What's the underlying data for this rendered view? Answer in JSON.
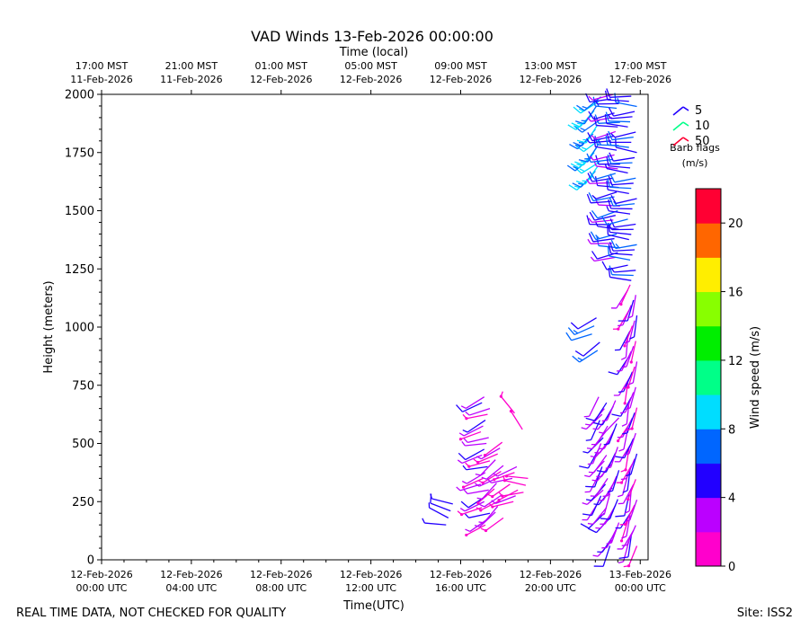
{
  "chart_data": {
    "type": "scatter",
    "title": "VAD Winds 13-Feb-2026 00:00:00",
    "top_axis_label": "Time (local)",
    "xlabel": "Time(UTC)",
    "ylabel": "Height (meters)",
    "xlim_hours": [
      0,
      24.35
    ],
    "ylim": [
      0,
      2000
    ],
    "y_ticks": [
      0,
      250,
      500,
      750,
      1000,
      1250,
      1500,
      1750,
      2000
    ],
    "x_ticks": [
      {
        "hour": 0,
        "line1": "12-Feb-2026",
        "line2": "00:00 UTC"
      },
      {
        "hour": 4,
        "line1": "12-Feb-2026",
        "line2": "04:00 UTC"
      },
      {
        "hour": 8,
        "line1": "12-Feb-2026",
        "line2": "08:00 UTC"
      },
      {
        "hour": 12,
        "line1": "12-Feb-2026",
        "line2": "12:00 UTC"
      },
      {
        "hour": 16,
        "line1": "12-Feb-2026",
        "line2": "16:00 UTC"
      },
      {
        "hour": 20,
        "line1": "12-Feb-2026",
        "line2": "20:00 UTC"
      },
      {
        "hour": 24,
        "line1": "13-Feb-2026",
        "line2": "00:00 UTC"
      }
    ],
    "top_ticks": [
      {
        "hour": 0,
        "line1": "17:00 MST",
        "line2": "11-Feb-2026"
      },
      {
        "hour": 4,
        "line1": "21:00 MST",
        "line2": "11-Feb-2026"
      },
      {
        "hour": 8,
        "line1": "01:00 MST",
        "line2": "12-Feb-2026"
      },
      {
        "hour": 12,
        "line1": "05:00 MST",
        "line2": "12-Feb-2026"
      },
      {
        "hour": 16,
        "line1": "09:00 MST",
        "line2": "12-Feb-2026"
      },
      {
        "hour": 20,
        "line1": "13:00 MST",
        "line2": "12-Feb-2026"
      },
      {
        "hour": 24,
        "line1": "17:00 MST",
        "line2": "12-Feb-2026"
      }
    ],
    "barb_legend": {
      "entries": [
        {
          "label": "5",
          "color": "#2200ff"
        },
        {
          "label": "10",
          "color": "#00ff88"
        },
        {
          "label": "50",
          "color": "#ff0033"
        }
      ],
      "title_line1": "Barb flags",
      "title_line2": "(m/s)"
    },
    "colorbar": {
      "label": "Wind speed (m/s)",
      "min": 0,
      "max": 22,
      "ticks": [
        0,
        4,
        8,
        12,
        16,
        20
      ],
      "colors": [
        "#ff00cc",
        "#bb00ff",
        "#2200ff",
        "#0066ff",
        "#00ddff",
        "#00ff88",
        "#00ee00",
        "#88ff00",
        "#ffee00",
        "#ff6600",
        "#ff0033"
      ]
    },
    "barb_groups": [
      {
        "name": "16:00 UTC profile",
        "hour": 15.55,
        "h_start": 150,
        "h_end": 260,
        "h_step": 30,
        "speed_min": 4,
        "speed_max": 5,
        "direction_deg": 290
      },
      {
        "name": "17:00 UTC profile",
        "hour": 17.1,
        "h_start": 150,
        "h_end": 720,
        "h_step": 25,
        "speed_min": 1,
        "speed_max": 5,
        "direction_deg": 250
      },
      {
        "name": "17:30 UTC profile",
        "hour": 17.7,
        "h_start": 180,
        "h_end": 520,
        "h_step": 25,
        "speed_min": 1,
        "speed_max": 4,
        "direction_deg": 235
      },
      {
        "name": "18:10 UTC profile",
        "hour": 18.4,
        "h_start": 250,
        "h_end": 420,
        "h_step": 25,
        "speed_min": 1,
        "speed_max": 3,
        "direction_deg": 250
      },
      {
        "name": "18:30 UTC profile",
        "hour": 18.6,
        "h_start": 560,
        "h_end": 630,
        "h_step": 70,
        "speed_min": 1,
        "speed_max": 2,
        "direction_deg": 315
      },
      {
        "name": "19:00 UTC profile",
        "hour": 18.9,
        "h_start": 290,
        "h_end": 350,
        "h_step": 30,
        "speed_min": 1,
        "speed_max": 2,
        "direction_deg": 270
      },
      {
        "name": "22:00 UTC profile",
        "hour": 22.0,
        "h_start": 900,
        "h_end": 1040,
        "h_step": 35,
        "speed_min": 5,
        "speed_max": 8,
        "direction_deg": 240
      },
      {
        "name": "22:05 UTC upper profile",
        "hour": 22.05,
        "h_start": 1650,
        "h_end": 2000,
        "h_step": 20,
        "speed_min": 7,
        "speed_max": 9,
        "direction_deg": 225
      },
      {
        "name": "22:10 UTC lower profile",
        "hour": 22.35,
        "h_start": 200,
        "h_end": 700,
        "h_step": 25,
        "speed_min": 2,
        "speed_max": 5,
        "direction_deg": 215
      },
      {
        "name": "22:50 UTC profile",
        "hour": 22.85,
        "h_start": 60,
        "h_end": 700,
        "h_step": 25,
        "speed_min": 2,
        "speed_max": 5,
        "direction_deg": 210
      },
      {
        "name": "22:50 UTC upper profile",
        "hour": 22.9,
        "h_start": 1300,
        "h_end": 2000,
        "h_step": 20,
        "speed_min": 3,
        "speed_max": 7,
        "direction_deg": 265
      },
      {
        "name": "23:40 UTC profile",
        "hour": 23.65,
        "h_start": 60,
        "h_end": 1200,
        "h_step": 22,
        "speed_min": 1,
        "speed_max": 5,
        "direction_deg": 200
      },
      {
        "name": "23:40 UTC upper profile",
        "hour": 23.65,
        "h_start": 1200,
        "h_end": 2000,
        "h_step": 22,
        "speed_min": 4,
        "speed_max": 7,
        "direction_deg": 270
      }
    ]
  },
  "footer": {
    "disclaimer": "REAL TIME DATA, NOT CHECKED FOR QUALITY",
    "site": "Site: ISS2"
  }
}
